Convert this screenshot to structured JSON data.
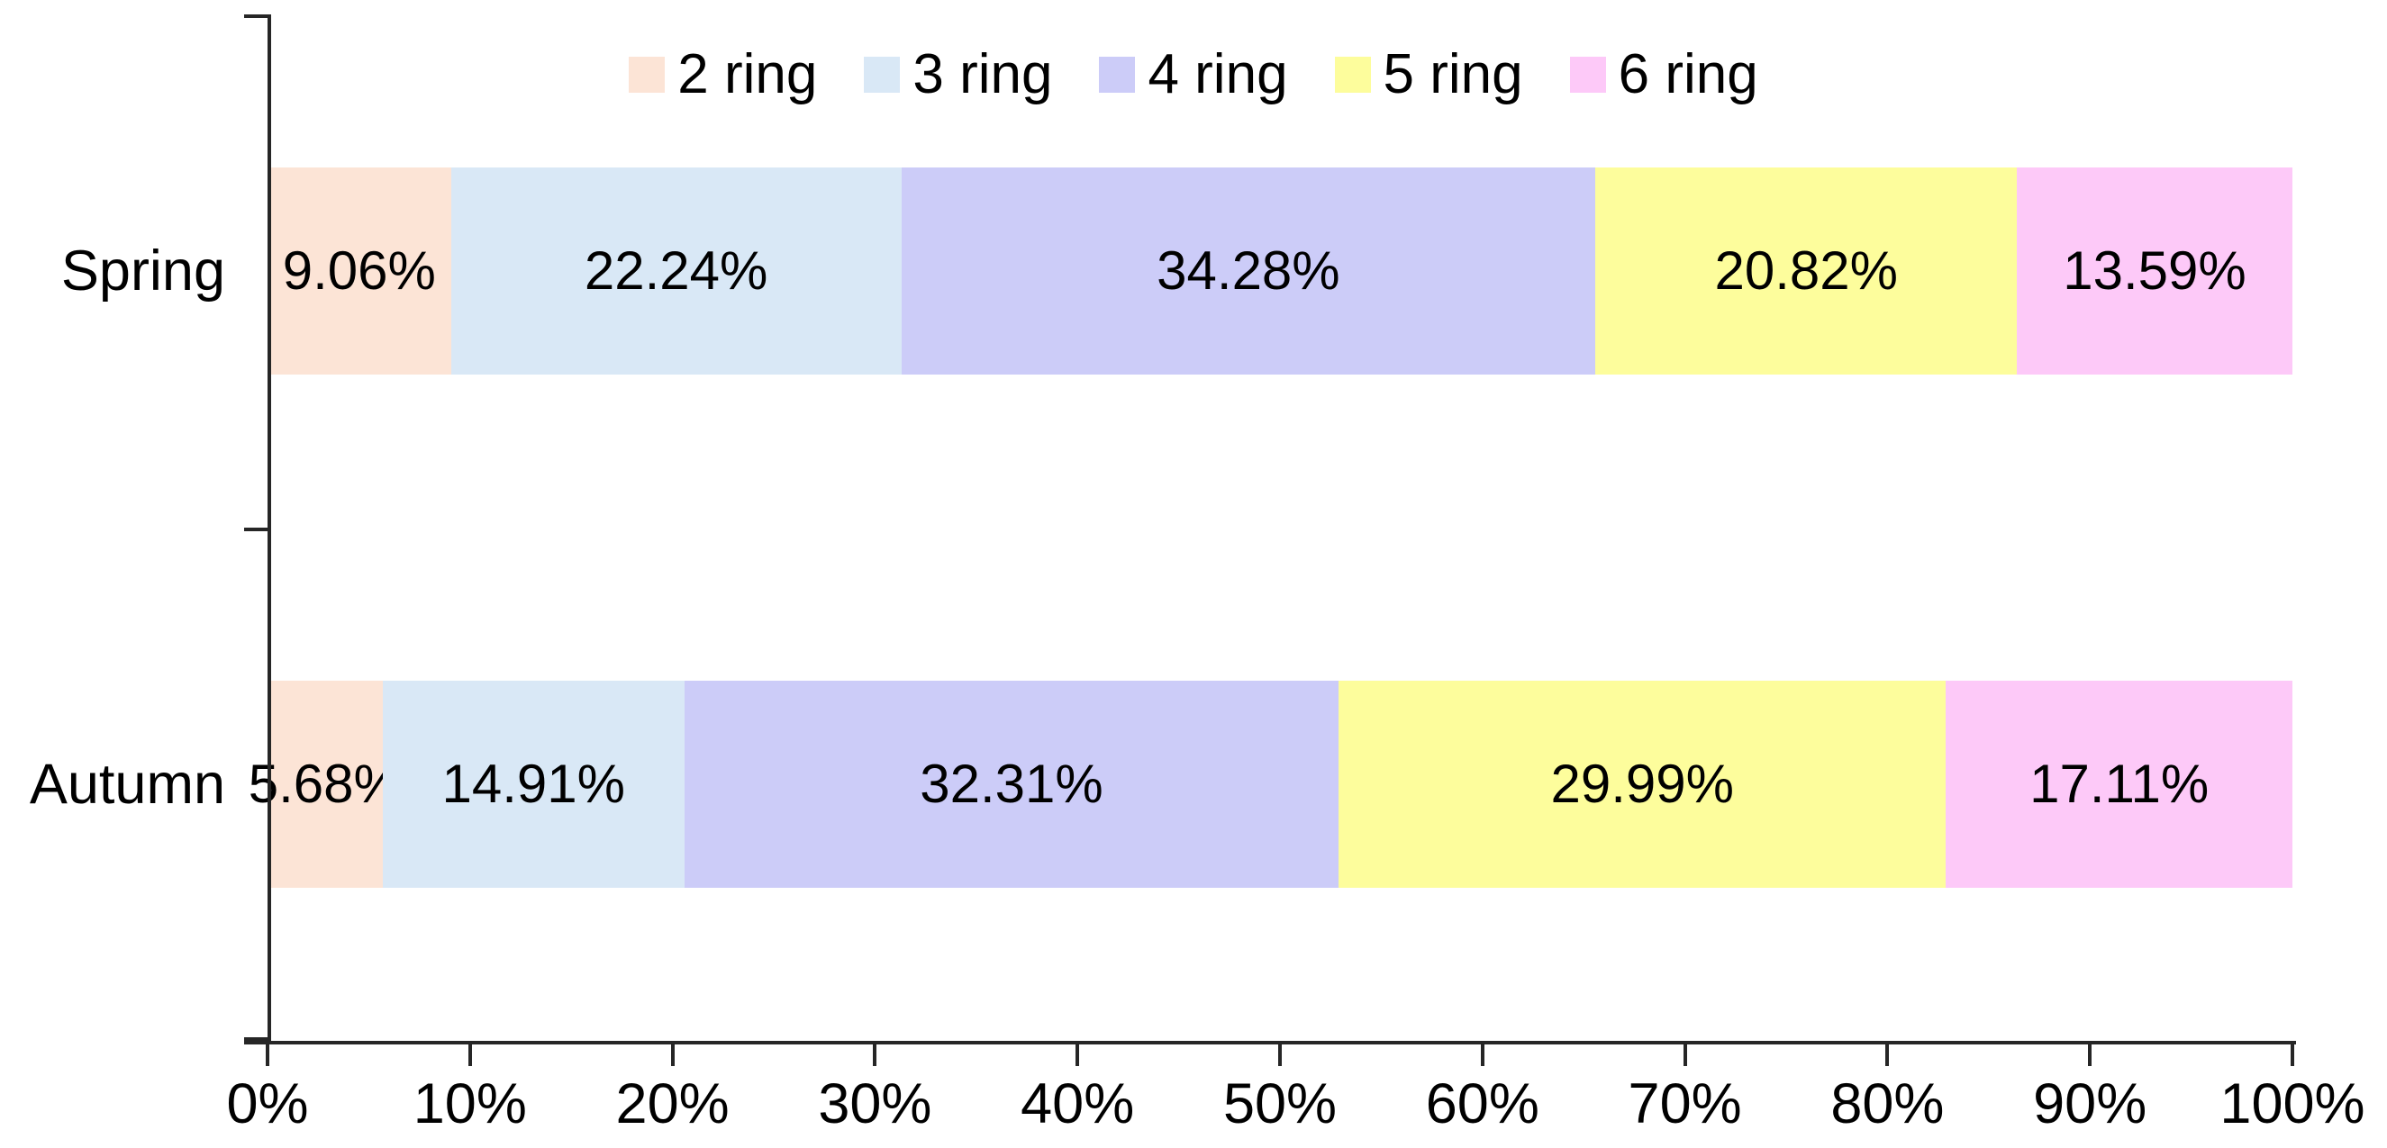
{
  "chart_data": {
    "type": "bar",
    "orientation": "horizontal",
    "stacked": true,
    "unit": "%",
    "title": "",
    "categories": [
      "Spring",
      "Autumn"
    ],
    "series": [
      {
        "name": "2 ring",
        "color": "#FCE4D6",
        "values": [
          9.06,
          5.68
        ]
      },
      {
        "name": "3 ring",
        "color": "#D9E8F6",
        "values": [
          22.24,
          14.91
        ]
      },
      {
        "name": "4 ring",
        "color": "#CCCCF8",
        "values": [
          34.28,
          32.31
        ]
      },
      {
        "name": "5 ring",
        "color": "#FDFD9C",
        "values": [
          20.82,
          29.99
        ]
      },
      {
        "name": "6 ring",
        "color": "#FDC9F8",
        "values": [
          13.59,
          17.11
        ]
      }
    ],
    "data_labels": [
      [
        "9.06%",
        "22.24%",
        "34.28%",
        "20.82%",
        "13.59%"
      ],
      [
        "5.68%",
        "14.91%",
        "32.31%",
        "29.99%",
        "17.11%"
      ]
    ],
    "x_axis": {
      "min": 0,
      "max": 100,
      "tick_labels": [
        "0%",
        "10%",
        "20%",
        "30%",
        "40%",
        "50%",
        "60%",
        "70%",
        "80%",
        "90%",
        "100%"
      ]
    },
    "legend": {
      "position": "top",
      "entries": [
        "2 ring",
        "3 ring",
        "4 ring",
        "5 ring",
        "6 ring"
      ]
    },
    "grid": false,
    "axis_color": "#262626",
    "text_color": "#000000",
    "background_color": "#FFFFFF"
  }
}
